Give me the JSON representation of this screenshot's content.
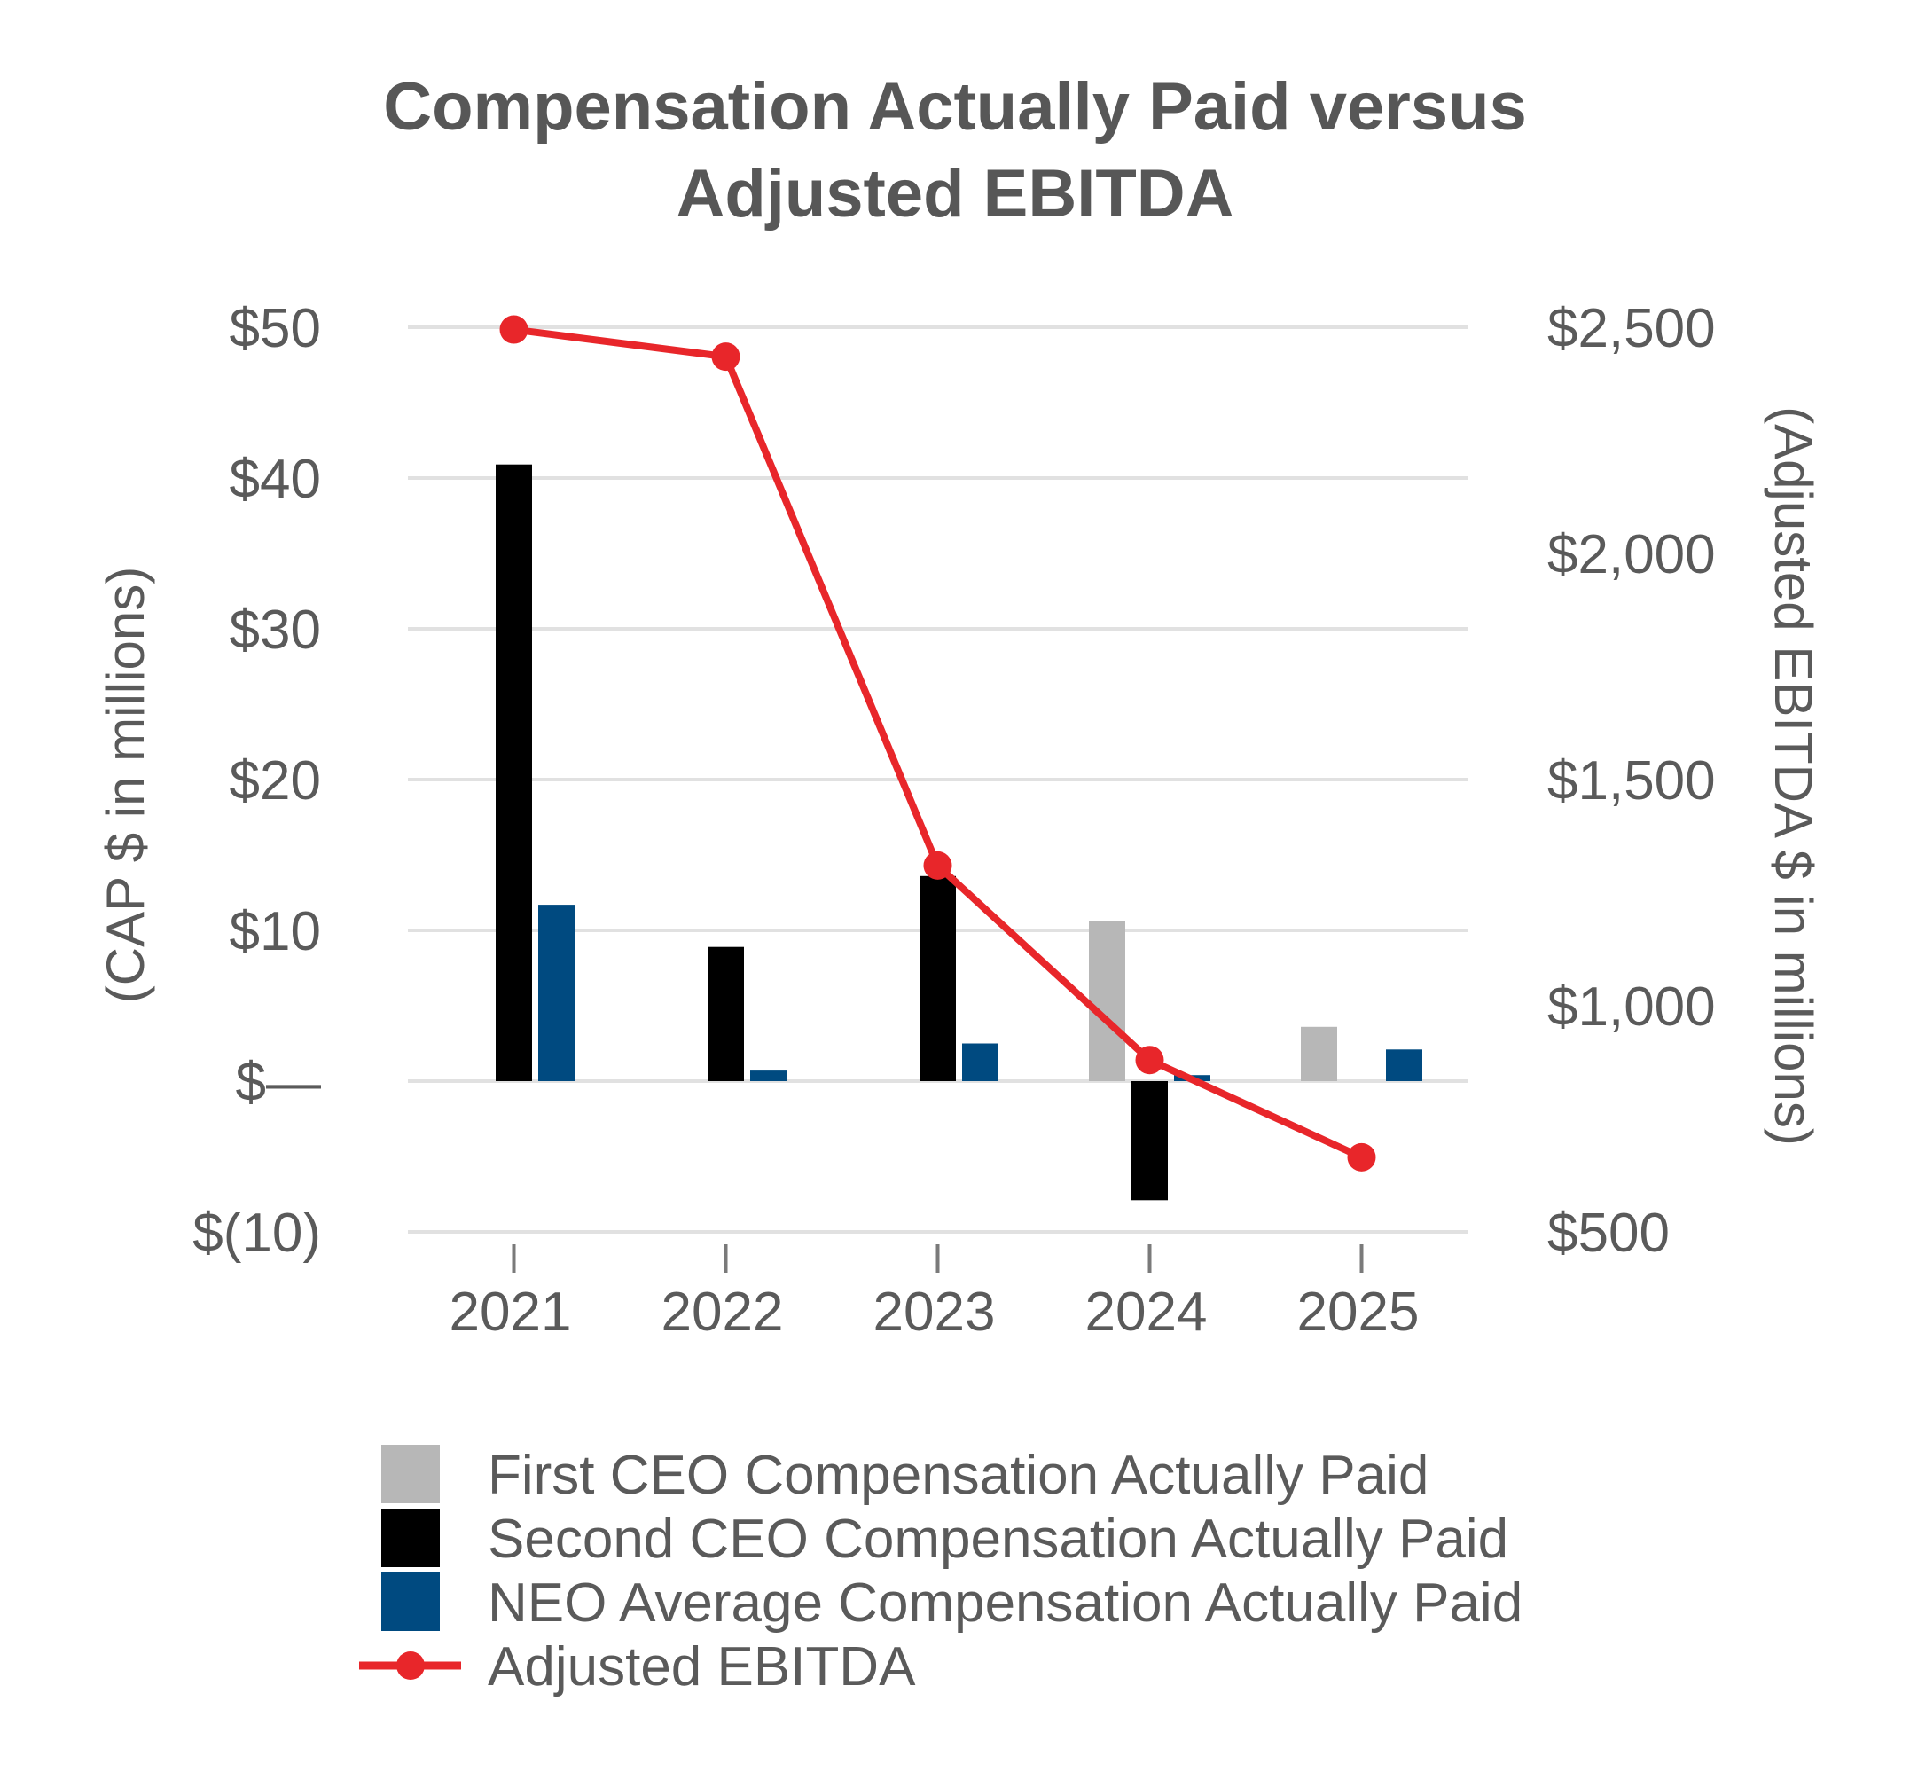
{
  "chart_data": {
    "type": "bar",
    "title_lines": [
      "Compensation Actually Paid versus",
      "Adjusted EBITDA"
    ],
    "categories": [
      "2021",
      "2022",
      "2023",
      "2024",
      "2025"
    ],
    "left_axis": {
      "label": "(CAP $ in millions)",
      "ylim": [
        -10,
        50
      ],
      "ticks": [
        50,
        40,
        30,
        20,
        10,
        0,
        -10
      ],
      "tick_labels": [
        "$50",
        "$40",
        "$30",
        "$20",
        "$10",
        "$—",
        "$(10)"
      ]
    },
    "right_axis": {
      "label": "(Adjusted EBITDA $ in millions)",
      "ylim": [
        500,
        2500
      ],
      "ticks": [
        2500,
        2000,
        1500,
        1000,
        500
      ],
      "tick_labels": [
        "$2,500",
        "$2,000",
        "$1,500",
        "$1,000",
        "$500"
      ]
    },
    "grid": true,
    "legend_position": "bottom",
    "series": [
      {
        "name": "First CEO Compensation Actually Paid",
        "kind": "bar",
        "axis": "left",
        "color": "#b7b7b7",
        "values": [
          null,
          null,
          null,
          10.6,
          3.6
        ]
      },
      {
        "name": "Second CEO Compensation Actually Paid",
        "kind": "bar",
        "axis": "left",
        "color": "#000000",
        "values": [
          40.9,
          8.9,
          13.6,
          -7.9,
          null
        ]
      },
      {
        "name": "NEO Average Compensation Actually Paid",
        "kind": "bar",
        "axis": "left",
        "color": "#004a80",
        "values": [
          11.7,
          0.7,
          2.5,
          0.4,
          2.1
        ]
      },
      {
        "name": "Adjusted EBITDA",
        "kind": "line",
        "axis": "right",
        "color": "#e8262a",
        "values": [
          2495,
          2435,
          1310,
          880,
          665
        ]
      }
    ]
  }
}
